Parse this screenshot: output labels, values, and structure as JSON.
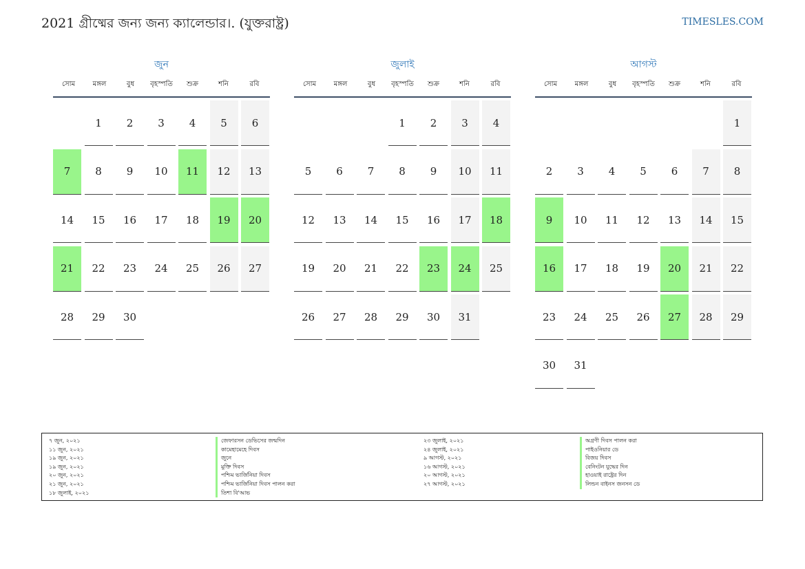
{
  "header": {
    "title": "2021 গ্রীষ্মের জন্য জন্য ক্যালেন্ডার।. (যুক্তরাষ্ট্র)",
    "site": "TIMESLES.COM"
  },
  "colors": {
    "holiday": "#99f58b",
    "weekend": "#f3f3f3",
    "accent": "#2f77b8"
  },
  "weekdays": [
    "সোম",
    "মঙ্গল",
    "বুধ",
    "বৃহস্পতি",
    "শুক্র",
    "শনি",
    "রবি"
  ],
  "months": [
    {
      "name": "জুন",
      "offset": 1,
      "days": 30,
      "holidays": [
        7,
        11,
        19,
        20,
        21
      ]
    },
    {
      "name": "জুলাই",
      "offset": 3,
      "days": 31,
      "holidays": [
        18,
        23,
        24
      ]
    },
    {
      "name": "আগস্ট",
      "offset": 6,
      "days": 31,
      "holidays": [
        9,
        16,
        20,
        27
      ]
    }
  ],
  "legend": {
    "col1_dates": [
      "৭ জুন, ২০২১",
      "১১ জুন, ২০২১",
      "১৯ জুন, ২০২১",
      "১৯ জুন, ২০২১",
      "২০ জুন, ২০২১",
      "২১ জুন, ২০২১",
      "১৮ জুলাই, ২০২১"
    ],
    "col1_names": [
      "জেফারসন ডেভিসের জন্মদিন",
      "কামেহামেহে দিবস",
      "জুনে",
      "মুক্তি দিবস",
      "পশ্চিম ভার্জিনিয়া দিবস",
      "পশ্চিম ভার্জিনিয়া দিবস পালন করা",
      "তিশা বি'আভ"
    ],
    "col2_dates": [
      "২৩ জুলাই, ২০২১",
      "২৪ জুলাই, ২০২১",
      "৯ আগস্ট, ২০২১",
      "১৬ আগস্ট, ২০২১",
      "২০ আগস্ট, ২০২১",
      "২৭ আগস্ট, ২০২১"
    ],
    "col2_names": [
      "অগ্রণী দিবস পালন করা",
      "পাইওনিয়ার ডে",
      "বিজয় দিবস",
      "বেনিংটন যুদ্ধের দিন",
      "হাওয়াই রাষ্ট্রের দিন",
      "লিন্ডন বাইনস জনসন ডে"
    ]
  }
}
